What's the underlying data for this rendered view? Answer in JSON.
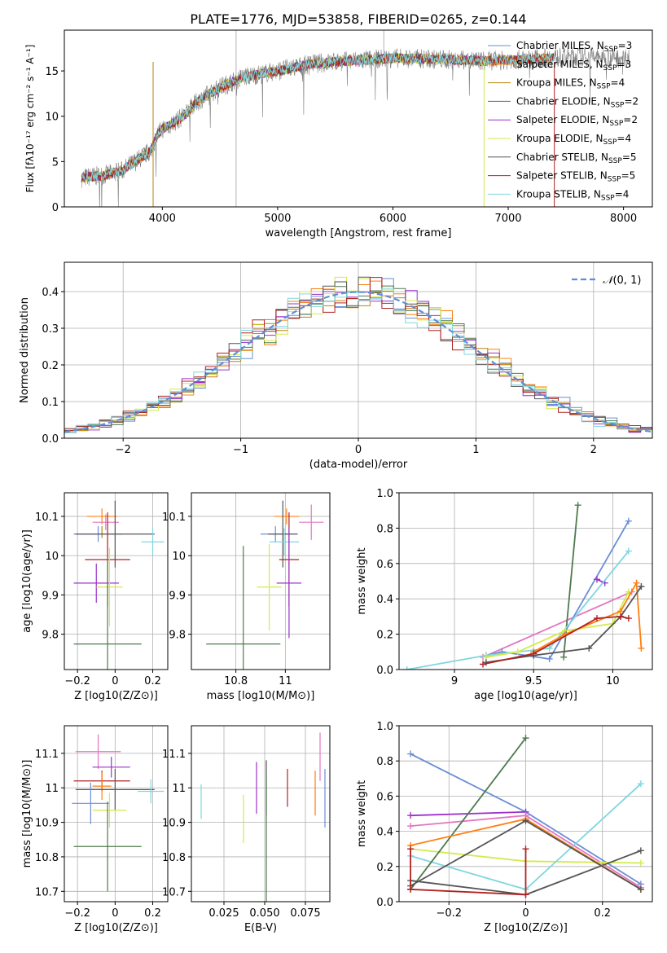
{
  "figure_title": "PLATE=1776, MJD=53858, FIBERID=0265, z=0.144",
  "colors": {
    "chabrier_miles": "#6a8fd6",
    "salpeter_miles": "#ff7f0e",
    "kroupa_miles": "#b8860b",
    "chabrier_elodie": "#4f7a4f",
    "salpeter_elodie": "#9932cc",
    "kroupa_elodie": "#d4ea4a",
    "chabrier_stelib": "#555555",
    "salpeter_stelib": "#b22222",
    "kroupa_stelib": "#7fd6e0",
    "pink": "#e377c2",
    "gauss": "#5b8fd6"
  },
  "chart_data": [
    {
      "id": "spectrum",
      "type": "line",
      "xlabel": "wavelength [Angstrom, rest frame]",
      "ylabel": "Flux [fλ10⁻¹⁷ erg cm⁻² s⁻¹ A⁻¹]",
      "xlim": [
        3150,
        8250
      ],
      "ylim": [
        0,
        19.5
      ],
      "xticks": [
        4000,
        5000,
        6000,
        7000,
        8000
      ],
      "yticks": [
        0,
        5,
        10,
        15
      ],
      "grid": false,
      "legend_position": "upper right",
      "legend": [
        {
          "base": "Chabrier MILES, N",
          "sub": "SSP",
          "tail": "=3",
          "color": "chabrier_miles"
        },
        {
          "base": "Salpeter MILES, N",
          "sub": "SSP",
          "tail": "=3",
          "color": "salpeter_miles"
        },
        {
          "base": "Kroupa MILES, N",
          "sub": "SSP",
          "tail": "=4",
          "color": "kroupa_miles"
        },
        {
          "base": "Chabrier ELODIE, N",
          "sub": "SSP",
          "tail": "=2",
          "color": "chabrier_elodie"
        },
        {
          "base": "Salpeter ELODIE, N",
          "sub": "SSP",
          "tail": "=2",
          "color": "salpeter_elodie"
        },
        {
          "base": "Kroupa ELODIE, N",
          "sub": "SSP",
          "tail": "=4",
          "color": "kroupa_elodie"
        },
        {
          "base": "Chabrier STELIB, N",
          "sub": "SSP",
          "tail": "=5",
          "color": "chabrier_stelib"
        },
        {
          "base": "Salpeter STELIB, N",
          "sub": "SSP",
          "tail": "=5",
          "color": "salpeter_stelib"
        },
        {
          "base": "Kroupa STELIB, N",
          "sub": "SSP",
          "tail": "=4",
          "color": "kroupa_stelib"
        }
      ],
      "continuum": {
        "x": [
          3300,
          3500,
          3650,
          3800,
          3900,
          3950,
          4000,
          4100,
          4200,
          4300,
          4500,
          4700,
          5000,
          5300,
          5600,
          6000,
          6400,
          6800,
          7200,
          7600,
          8000
        ],
        "y": [
          3.2,
          3.5,
          4.0,
          5.3,
          6.2,
          7.8,
          8.6,
          9.3,
          10.2,
          11.6,
          13.2,
          14.3,
          15.0,
          15.8,
          16.1,
          16.4,
          16.3,
          16.1,
          16.3,
          16.6,
          16.4
        ]
      },
      "model_coverage": {
        "chabrier_miles": [
          3300,
          7400
        ],
        "salpeter_miles": [
          3300,
          7400
        ],
        "kroupa_miles": [
          3300,
          7400
        ],
        "chabrier_elodie": [
          3300,
          6800
        ],
        "salpeter_elodie": [
          3300,
          6800
        ],
        "kroupa_elodie": [
          3300,
          6800
        ],
        "chabrier_stelib": [
          3300,
          7400
        ],
        "salpeter_stelib": [
          3300,
          7400
        ],
        "kroupa_stelib": [
          3300,
          7400
        ]
      },
      "vertical_drops": [
        {
          "x": 3920,
          "color": "kroupa_miles"
        },
        {
          "x": 6790,
          "color": "kroupa_elodie"
        },
        {
          "x": 7400,
          "color": "salpeter_stelib"
        }
      ],
      "data_range": [
        3300,
        8050
      ]
    },
    {
      "id": "residuals",
      "type": "histogram",
      "xlabel": "(data-model)/error",
      "ylabel": "Normed distribution",
      "xlim": [
        -2.5,
        2.5
      ],
      "ylim": [
        0,
        0.48
      ],
      "xticks": [
        -2,
        -1,
        0,
        1,
        2
      ],
      "yticks": [
        0,
        0.1,
        0.2,
        0.3,
        0.4
      ],
      "grid": true,
      "legend_position": "upper right",
      "legend": [
        {
          "label": "N(0,1)",
          "color": "gauss",
          "style": "dashed"
        }
      ],
      "bin_width": 0.1,
      "series_colors": [
        "chabrier_miles",
        "salpeter_miles",
        "kroupa_miles",
        "chabrier_elodie",
        "salpeter_elodie",
        "kroupa_elodie",
        "chabrier_stelib",
        "salpeter_stelib",
        "kroupa_stelib"
      ]
    },
    {
      "id": "z_age",
      "type": "errorbar",
      "xlabel": "Z [log10(Z/Z⊙)]",
      "ylabel": "age  [log10(age/yr)]",
      "xlim": [
        -0.27,
        0.28
      ],
      "ylim": [
        9.71,
        10.16
      ],
      "xticks": [
        -0.2,
        0.0,
        0.2
      ],
      "yticks": [
        9.8,
        9.9,
        10.0,
        10.1
      ],
      "grid": true,
      "points": [
        {
          "x": -0.07,
          "y": 10.1,
          "xerr": 0.08,
          "yerr": 0.02,
          "color": "salpeter_miles"
        },
        {
          "x": -0.05,
          "y": 10.085,
          "xerr": 0.07,
          "yerr": 0.02,
          "color": "pink"
        },
        {
          "x": -0.09,
          "y": 10.055,
          "xerr": 0.13,
          "yerr": 0.02,
          "color": "chabrier_miles"
        },
        {
          "x": -0.07,
          "y": 10.06,
          "xerr": 0.0,
          "yerr": 0.015,
          "color": "kroupa_miles"
        },
        {
          "x": 0.0,
          "y": 10.055,
          "xerr": 0.21,
          "yerr": 0.085,
          "color": "chabrier_stelib"
        },
        {
          "x": 0.2,
          "y": 10.035,
          "xerr": 0.06,
          "yerr": 0.035,
          "color": "kroupa_stelib"
        },
        {
          "x": -0.04,
          "y": 9.99,
          "xerr": 0.12,
          "yerr": 0.12,
          "color": "salpeter_stelib"
        },
        {
          "x": -0.1,
          "y": 9.93,
          "xerr": 0.12,
          "yerr": 0.05,
          "color": "salpeter_elodie"
        },
        {
          "x": -0.03,
          "y": 9.92,
          "xerr": 0.07,
          "yerr": 0.1,
          "color": "kroupa_elodie"
        },
        {
          "x": -0.04,
          "y": 9.775,
          "xerr": 0.18,
          "yerr": 0.22,
          "color": "chabrier_elodie"
        }
      ]
    },
    {
      "id": "mass_age",
      "type": "errorbar",
      "xlabel": "mass [log10(M/M⊙)]",
      "ylabel": "",
      "xlim": [
        10.62,
        11.18
      ],
      "ylim": [
        9.71,
        10.16
      ],
      "xticks": [
        10.8,
        11.0
      ],
      "yticks": [
        9.8,
        9.9,
        10.0,
        10.1
      ],
      "grid": true,
      "points": [
        {
          "x": 11.005,
          "y": 10.1,
          "xerr": 0.05,
          "yerr": 0.02,
          "color": "salpeter_miles"
        },
        {
          "x": 11.105,
          "y": 10.085,
          "xerr": 0.05,
          "yerr": 0.045,
          "color": "pink"
        },
        {
          "x": 10.96,
          "y": 10.055,
          "xerr": 0.06,
          "yerr": 0.02,
          "color": "chabrier_miles"
        },
        {
          "x": 10.99,
          "y": 10.055,
          "xerr": 0.06,
          "yerr": 0.085,
          "color": "chabrier_stelib"
        },
        {
          "x": 10.995,
          "y": 10.035,
          "xerr": 0.06,
          "yerr": 0.035,
          "color": "kroupa_stelib"
        },
        {
          "x": 11.015,
          "y": 9.99,
          "xerr": 0.04,
          "yerr": 0.12,
          "color": "salpeter_stelib"
        },
        {
          "x": 11.015,
          "y": 9.93,
          "xerr": 0.05,
          "yerr": 0.14,
          "color": "salpeter_elodie"
        },
        {
          "x": 10.935,
          "y": 9.92,
          "xerr": 0.05,
          "yerr": 0.11,
          "color": "kroupa_elodie"
        },
        {
          "x": 10.83,
          "y": 9.775,
          "xerr": 0.15,
          "yerr": 0.25,
          "color": "chabrier_elodie"
        }
      ]
    },
    {
      "id": "age_weight",
      "type": "line",
      "xlabel": "age  [log10(age/yr)]",
      "ylabel": "mass weight",
      "xlim": [
        8.65,
        10.25
      ],
      "ylim": [
        0,
        1.0
      ],
      "xticks": [
        9.0,
        9.5,
        10.0
      ],
      "yticks": [
        0.0,
        0.2,
        0.4,
        0.6,
        0.8,
        1.0
      ],
      "grid": true,
      "series": [
        {
          "color": "pink",
          "x": [
            9.18,
            10.12
          ],
          "y": [
            0.07,
            0.44
          ]
        },
        {
          "color": "chabrier_miles",
          "x": [
            9.2,
            9.3,
            9.6,
            10.1
          ],
          "y": [
            0.08,
            0.1,
            0.06,
            0.84
          ]
        },
        {
          "color": "chabrier_elodie",
          "x": [
            9.69,
            9.78
          ],
          "y": [
            0.07,
            0.93
          ]
        },
        {
          "color": "salpeter_elodie",
          "x": [
            9.9,
            9.95
          ],
          "y": [
            0.51,
            0.49
          ]
        },
        {
          "color": "kroupa_stelib",
          "x": [
            8.7,
            9.2,
            9.6,
            10.1
          ],
          "y": [
            0.0,
            0.08,
            0.12,
            0.67
          ]
        },
        {
          "color": "kroupa_elodie",
          "x": [
            9.2,
            9.4,
            9.7,
            10.0,
            10.1
          ],
          "y": [
            0.07,
            0.1,
            0.22,
            0.26,
            0.44
          ]
        },
        {
          "color": "salpeter_miles",
          "x": [
            9.5,
            9.7,
            10.05,
            10.15,
            10.18
          ],
          "y": [
            0.1,
            0.2,
            0.33,
            0.49,
            0.12
          ]
        },
        {
          "color": "chabrier_stelib",
          "x": [
            9.2,
            9.5,
            9.85,
            10.05,
            10.18
          ],
          "y": [
            0.04,
            0.08,
            0.12,
            0.3,
            0.47
          ]
        },
        {
          "color": "salpeter_stelib",
          "x": [
            9.18,
            9.5,
            9.9,
            10.05,
            10.1
          ],
          "y": [
            0.03,
            0.09,
            0.29,
            0.3,
            0.29
          ]
        }
      ]
    },
    {
      "id": "z_mass",
      "type": "errorbar",
      "xlabel": "Z [log10(Z/Z⊙)]",
      "ylabel": "mass [log10(M/M⊙)]",
      "xlim": [
        -0.27,
        0.28
      ],
      "ylim": [
        10.67,
        11.18
      ],
      "xticks": [
        -0.2,
        0.0,
        0.2
      ],
      "yticks": [
        10.7,
        10.8,
        10.9,
        11.0,
        11.1
      ],
      "grid": true,
      "points": [
        {
          "x": -0.09,
          "y": 11.105,
          "xerr": 0.12,
          "yerr": 0.05,
          "color": "pink"
        },
        {
          "x": -0.02,
          "y": 11.06,
          "xerr": 0.1,
          "yerr": 0.03,
          "color": "salpeter_elodie"
        },
        {
          "x": -0.07,
          "y": 11.02,
          "xerr": 0.15,
          "yerr": 0.03,
          "color": "salpeter_stelib"
        },
        {
          "x": -0.07,
          "y": 11.005,
          "xerr": 0.05,
          "yerr": 0.04,
          "color": "salpeter_miles"
        },
        {
          "x": 0.0,
          "y": 10.995,
          "xerr": 0.21,
          "yerr": 0.06,
          "color": "chabrier_stelib"
        },
        {
          "x": 0.19,
          "y": 10.99,
          "xerr": 0.07,
          "yerr": 0.035,
          "color": "kroupa_stelib"
        },
        {
          "x": -0.13,
          "y": 10.955,
          "xerr": 0.1,
          "yerr": 0.06,
          "color": "chabrier_miles"
        },
        {
          "x": -0.03,
          "y": 10.935,
          "xerr": 0.09,
          "yerr": 0.05,
          "color": "kroupa_elodie"
        },
        {
          "x": -0.04,
          "y": 10.83,
          "xerr": 0.18,
          "yerr": 0.13,
          "color": "chabrier_elodie"
        }
      ]
    },
    {
      "id": "ebv_mass",
      "type": "errorbar",
      "xlabel": "E(B-V)",
      "ylabel": "",
      "xlim": [
        0.005,
        0.09
      ],
      "ylim": [
        10.67,
        11.18
      ],
      "xticks": [
        0.025,
        0.05,
        0.075
      ],
      "xtick_labels": [
        "0.025",
        "0.050",
        "0.075"
      ],
      "yticks": [
        10.7,
        10.8,
        10.9,
        11.0,
        11.1
      ],
      "grid": true,
      "points": [
        {
          "x": 0.011,
          "y": 10.96,
          "xerr": 0,
          "yerr": 0.05,
          "color": "kroupa_stelib"
        },
        {
          "x": 0.037,
          "y": 10.91,
          "xerr": 0,
          "yerr": 0.07,
          "color": "kroupa_elodie"
        },
        {
          "x": 0.045,
          "y": 11.0,
          "xerr": 0,
          "yerr": 0.075,
          "color": "salpeter_elodie"
        },
        {
          "x": 0.051,
          "y": 11.0,
          "xerr": 0,
          "yerr": 0.08,
          "color": "chabrier_stelib"
        },
        {
          "x": 0.051,
          "y": 10.85,
          "xerr": 0,
          "yerr": 0.18,
          "color": "chabrier_elodie"
        },
        {
          "x": 0.064,
          "y": 11.0,
          "xerr": 0,
          "yerr": 0.055,
          "color": "salpeter_stelib"
        },
        {
          "x": 0.081,
          "y": 10.985,
          "xerr": 0,
          "yerr": 0.065,
          "color": "salpeter_miles"
        },
        {
          "x": 0.084,
          "y": 11.09,
          "xerr": 0,
          "yerr": 0.07,
          "color": "pink"
        },
        {
          "x": 0.087,
          "y": 10.97,
          "xerr": 0,
          "yerr": 0.085,
          "color": "chabrier_miles"
        }
      ]
    },
    {
      "id": "z_weight",
      "type": "line",
      "xlabel": "Z [log10(Z/Z⊙)]",
      "ylabel": "mass weight",
      "xlim": [
        -0.33,
        0.33
      ],
      "ylim": [
        0,
        1.0
      ],
      "xticks": [
        -0.2,
        0.0,
        0.2
      ],
      "yticks": [
        0.0,
        0.2,
        0.4,
        0.6,
        0.8,
        1.0
      ],
      "grid": true,
      "series": [
        {
          "color": "chabrier_miles",
          "x": [
            -0.3,
            0.0,
            0.3
          ],
          "y": [
            0.84,
            0.51,
            0.1
          ]
        },
        {
          "color": "salpeter_elodie",
          "x": [
            -0.3,
            0.0
          ],
          "y": [
            0.49,
            0.51
          ]
        },
        {
          "color": "pink",
          "x": [
            -0.3,
            0.0,
            0.3
          ],
          "y": [
            0.43,
            0.49,
            0.08
          ]
        },
        {
          "color": "kroupa_elodie",
          "x": [
            -0.3,
            0.0,
            0.3
          ],
          "y": [
            0.3,
            0.23,
            0.22
          ]
        },
        {
          "color": "kroupa_stelib",
          "x": [
            -0.3,
            0.0,
            0.3
          ],
          "y": [
            0.26,
            0.07,
            0.67
          ]
        },
        {
          "color": "chabrier_elodie",
          "x": [
            -0.3,
            0.0
          ],
          "y": [
            0.07,
            0.93
          ]
        },
        {
          "color": "chabrier_stelib",
          "x": [
            -0.3,
            0.0,
            0.3
          ],
          "y": [
            0.12,
            0.04,
            0.29
          ]
        },
        {
          "color": "salpeter_miles",
          "x": [
            -0.3,
            0.0,
            0.3
          ],
          "y": [
            0.32,
            0.47,
            0.07
          ]
        },
        {
          "color": "chabrier_stelib",
          "x": [
            -0.3,
            0.0,
            0.3
          ],
          "y": [
            0.09,
            0.46,
            0.07
          ]
        },
        {
          "color": "salpeter_stelib",
          "x": [
            -0.3,
            -0.3,
            0.0,
            0.0
          ],
          "y": [
            0.3,
            0.07,
            0.04,
            0.3
          ]
        }
      ]
    }
  ]
}
